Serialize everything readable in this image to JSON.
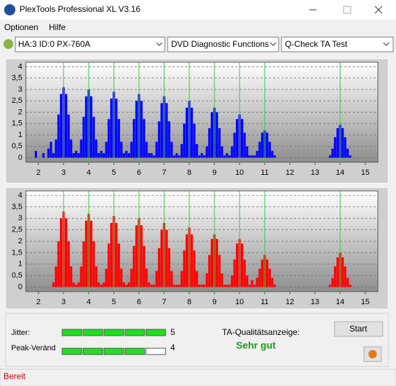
{
  "window": {
    "title": "PlexTools Professional XL V3.16",
    "menu": [
      "Optionen",
      "Hilfe"
    ],
    "drive": "HA:3 ID:0  PX-760A",
    "function": "DVD Diagnostic Functions",
    "test": "Q-Check TA Test"
  },
  "chart_data": [
    {
      "type": "bar",
      "color": "#0000ff",
      "marker_color": "#33cc33",
      "grid": true,
      "xlim": [
        1.5,
        15.5
      ],
      "ylim": [
        -0.2,
        4.2
      ],
      "xticks": [
        2,
        3,
        4,
        5,
        6,
        7,
        8,
        9,
        10,
        11,
        12,
        13,
        14,
        15
      ],
      "yticks": [
        0,
        {
          "value": 0.5,
          "label": "0,5"
        },
        1,
        {
          "value": 1.5,
          "label": "1,5"
        },
        2,
        {
          "value": 2.5,
          "label": "2,5"
        },
        3,
        {
          "value": 3.5,
          "label": "3,5"
        },
        4
      ],
      "markers": [
        3,
        4,
        5,
        6,
        7,
        8,
        9,
        10,
        11,
        14
      ],
      "x": [
        1.9,
        2.2,
        2.4,
        2.5,
        2.6,
        2.7,
        2.8,
        2.9,
        3,
        3.1,
        3.2,
        3.3,
        3.4,
        3.5,
        3.6,
        3.7,
        3.8,
        3.9,
        4,
        4.1,
        4.2,
        4.3,
        4.4,
        4.5,
        4.6,
        4.7,
        4.8,
        4.9,
        5,
        5.1,
        5.2,
        5.3,
        5.4,
        5.5,
        5.6,
        5.7,
        5.8,
        5.9,
        6,
        6.1,
        6.2,
        6.3,
        6.4,
        6.5,
        6.6,
        6.7,
        6.8,
        6.9,
        7,
        7.1,
        7.2,
        7.3,
        7.4,
        7.5,
        7.6,
        7.7,
        7.8,
        7.9,
        8,
        8.1,
        8.2,
        8.3,
        8.4,
        8.5,
        8.6,
        8.7,
        8.8,
        8.9,
        9,
        9.1,
        9.2,
        9.3,
        9.4,
        9.5,
        9.6,
        9.7,
        9.8,
        9.9,
        10,
        10.1,
        10.2,
        10.3,
        10.4,
        10.5,
        10.6,
        10.7,
        10.8,
        10.9,
        11,
        11.1,
        11.2,
        11.3,
        11.4,
        11.5,
        13.6,
        13.7,
        13.8,
        13.9,
        14,
        14.1,
        14.2,
        14.3,
        14.4
      ],
      "values": [
        0.3,
        0.2,
        0.4,
        0.7,
        0.2,
        0.8,
        1.9,
        2.8,
        3.1,
        2.8,
        1.9,
        0.8,
        0.2,
        0.3,
        0.2,
        0.8,
        1.8,
        2.7,
        3.0,
        2.7,
        1.8,
        0.8,
        0.2,
        0.3,
        0.2,
        0.7,
        1.7,
        2.6,
        2.9,
        2.6,
        1.7,
        0.7,
        0.2,
        0.3,
        0.2,
        0.7,
        1.7,
        2.5,
        2.8,
        2.5,
        1.7,
        0.7,
        0.2,
        0.2,
        0.1,
        0.7,
        1.6,
        2.4,
        2.7,
        2.4,
        1.6,
        0.7,
        0.1,
        0.2,
        0.1,
        0.6,
        1.5,
        2.2,
        2.5,
        2.2,
        1.5,
        0.6,
        0.1,
        0.2,
        0.1,
        0.5,
        1.3,
        2.0,
        2.2,
        2.0,
        1.3,
        0.5,
        0.1,
        0.2,
        0.1,
        0.5,
        1.1,
        1.7,
        1.9,
        1.7,
        1.1,
        0.5,
        0.1,
        0.1,
        0.1,
        0.3,
        0.7,
        1.1,
        1.2,
        1.1,
        0.7,
        0.3,
        0.1,
        0,
        0.1,
        0.4,
        0.9,
        1.3,
        1.45,
        1.3,
        0.9,
        0.4,
        0.1
      ]
    },
    {
      "type": "bar",
      "color": "#ff0000",
      "marker_color": "#33cc33",
      "grid": true,
      "xlim": [
        1.5,
        15.5
      ],
      "ylim": [
        -0.2,
        4.2
      ],
      "xticks": [
        2,
        3,
        4,
        5,
        6,
        7,
        8,
        9,
        10,
        11,
        12,
        13,
        14,
        15
      ],
      "yticks": [
        0,
        {
          "value": 0.5,
          "label": "0,5"
        },
        1,
        {
          "value": 1.5,
          "label": "1,5"
        },
        2,
        {
          "value": 2.5,
          "label": "2,5"
        },
        3,
        {
          "value": 3.5,
          "label": "3,5"
        },
        4
      ],
      "markers": [
        3,
        4,
        5,
        6,
        7,
        8,
        9,
        10,
        11,
        14
      ],
      "x": [
        2.6,
        2.7,
        2.8,
        2.9,
        3,
        3.1,
        3.2,
        3.3,
        3.4,
        3.5,
        3.6,
        3.7,
        3.8,
        3.9,
        4,
        4.1,
        4.2,
        4.3,
        4.4,
        4.5,
        4.6,
        4.7,
        4.8,
        4.9,
        5,
        5.1,
        5.2,
        5.3,
        5.4,
        5.5,
        5.6,
        5.7,
        5.8,
        5.9,
        6,
        6.1,
        6.2,
        6.3,
        6.4,
        6.5,
        6.6,
        6.7,
        6.8,
        6.9,
        7,
        7.1,
        7.2,
        7.3,
        7.4,
        7.5,
        7.6,
        7.7,
        7.8,
        7.9,
        8,
        8.1,
        8.2,
        8.3,
        8.4,
        8.5,
        8.6,
        8.7,
        8.8,
        8.9,
        9,
        9.1,
        9.2,
        9.3,
        9.4,
        9.5,
        9.6,
        9.7,
        9.8,
        9.9,
        10,
        10.1,
        10.2,
        10.3,
        10.4,
        10.5,
        10.6,
        10.7,
        10.8,
        10.9,
        11,
        11.1,
        11.2,
        11.3,
        11.4,
        11.5,
        13.6,
        13.7,
        13.8,
        13.9,
        14,
        14.1,
        14.2,
        14.3,
        14.4
      ],
      "values": [
        0.2,
        0.9,
        2.0,
        3.0,
        3.3,
        3.0,
        2.0,
        0.9,
        0.2,
        0.1,
        0.2,
        0.9,
        2.0,
        2.9,
        3.2,
        2.9,
        2.0,
        0.9,
        0.2,
        0.1,
        0.2,
        0.8,
        1.9,
        2.8,
        3.1,
        2.8,
        1.9,
        0.8,
        0.2,
        0.1,
        0.2,
        0.8,
        1.8,
        2.7,
        3.0,
        2.7,
        1.8,
        0.8,
        0.2,
        0.1,
        0.1,
        0.7,
        1.7,
        2.5,
        2.8,
        2.5,
        1.7,
        0.7,
        0.1,
        0.1,
        0.1,
        0.7,
        1.6,
        2.3,
        2.6,
        2.3,
        1.6,
        0.7,
        0.1,
        0.1,
        0.1,
        0.6,
        1.4,
        2.1,
        2.3,
        2.1,
        1.4,
        0.6,
        0.1,
        0.1,
        0.1,
        0.5,
        1.2,
        1.9,
        2.1,
        1.9,
        1.2,
        0.5,
        0.1,
        0.3,
        0.1,
        0.4,
        0.8,
        1.2,
        1.4,
        1.2,
        0.8,
        0.4,
        0.1,
        0,
        0.1,
        0.4,
        0.9,
        1.3,
        1.5,
        1.3,
        0.9,
        0.4,
        0.1
      ]
    }
  ],
  "ratings": {
    "jitter": {
      "label": "Jitter:",
      "value": 5
    },
    "peak": {
      "label": "Peak-Veränd",
      "value": 4
    }
  },
  "quality": {
    "label": "TA-Qualitätsanzeige:",
    "result": "Sehr gut"
  },
  "button": "Start",
  "status": "Bereit"
}
